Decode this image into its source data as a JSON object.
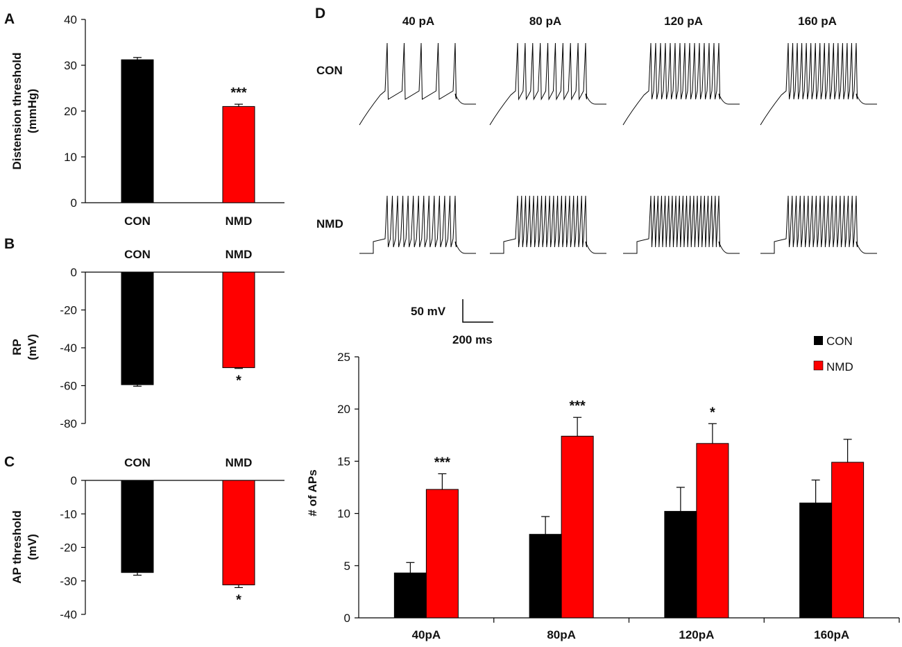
{
  "chart_data": [
    {
      "id": "A",
      "type": "bar",
      "panel_label": "A",
      "ylabel_line1": "Distension  threshold",
      "ylabel_line2": "(mmHg)",
      "ylim": [
        0,
        40
      ],
      "yticks": [
        "40",
        "30",
        "20",
        "10",
        "0"
      ],
      "categories": [
        "CON",
        "NMD"
      ],
      "values": [
        31.2,
        21.0
      ],
      "errors": [
        0.5,
        0.5
      ],
      "colors": [
        "#000000",
        "#ff0000"
      ],
      "significance": [
        "",
        "***"
      ]
    },
    {
      "id": "B",
      "type": "bar",
      "panel_label": "B",
      "ylabel_line1": "RP",
      "ylabel_line2": "(mV)",
      "ylim": [
        -80,
        0
      ],
      "yticks": [
        "0",
        "-20",
        "-40",
        "-60",
        "-80"
      ],
      "categories": [
        "CON",
        "NMD"
      ],
      "values": [
        -59.5,
        -50.5
      ],
      "errors": [
        0.8,
        0.4
      ],
      "colors": [
        "#000000",
        "#ff0000"
      ],
      "significance": [
        "",
        "*"
      ]
    },
    {
      "id": "C",
      "type": "bar",
      "panel_label": "C",
      "ylabel_line1": "AP threshold",
      "ylabel_line2": "(mV)",
      "ylim": [
        -40,
        0
      ],
      "yticks": [
        "0",
        "-10",
        "-20",
        "-30",
        "-40"
      ],
      "categories": [
        "CON",
        "NMD"
      ],
      "values": [
        -27.5,
        -31.2
      ],
      "errors": [
        0.8,
        0.8
      ],
      "colors": [
        "#000000",
        "#ff0000"
      ],
      "significance": [
        "",
        "*"
      ]
    },
    {
      "id": "D",
      "type": "bar",
      "panel_label": "D",
      "ylabel": "# of APs",
      "ylim": [
        0,
        25
      ],
      "yticks": [
        "25",
        "20",
        "15",
        "10",
        "5",
        "0"
      ],
      "categories": [
        "40pA",
        "80pA",
        "120pA",
        "160pA"
      ],
      "series": [
        {
          "name": "CON",
          "color": "#000000",
          "values": [
            4.3,
            8.0,
            10.2,
            11.0
          ],
          "errors": [
            1.0,
            1.7,
            2.3,
            2.2
          ]
        },
        {
          "name": "NMD",
          "color": "#ff0000",
          "values": [
            12.3,
            17.4,
            16.7,
            14.9
          ],
          "errors": [
            1.5,
            1.8,
            1.9,
            2.2
          ]
        }
      ],
      "significance": [
        "***",
        "***",
        "*",
        ""
      ],
      "legend_position": "top-right"
    }
  ],
  "traces": {
    "currents": [
      "40 pA",
      "80 pA",
      "120 pA",
      "160 pA"
    ],
    "rows": [
      "CON",
      "NMD"
    ],
    "spike_counts": {
      "CON": [
        5,
        10,
        15,
        16
      ],
      "NMD": [
        14,
        18,
        20,
        18
      ]
    },
    "scale_bar_voltage": "50 mV",
    "scale_bar_time": "200 ms"
  }
}
